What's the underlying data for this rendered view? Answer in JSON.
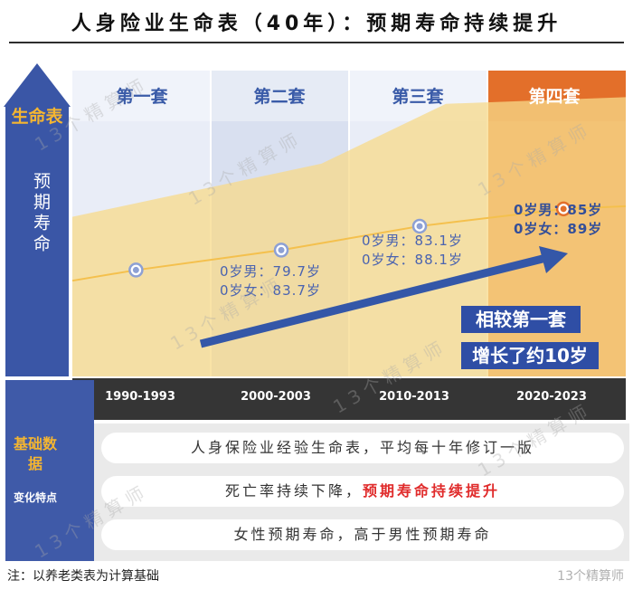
{
  "title": "人身险业生命表（40年）：预期寿命持续提升",
  "axis": {
    "heading": "生命表",
    "vertical_label": "预期寿命"
  },
  "chart_data": {
    "type": "line",
    "categories": [
      "1990-1993",
      "2000-2003",
      "2010-2013",
      "2020-2023"
    ],
    "sets": [
      "第一套",
      "第二套",
      "第三套",
      "第四套"
    ],
    "series": [
      {
        "values": [
          null,
          79.7,
          83.1,
          85
        ]
      },
      {
        "values": [
          null,
          83.7,
          88.1,
          89
        ]
      }
    ],
    "annotations": [
      {
        "line1": "0岁男：79.7岁",
        "line2": "0岁女：83.7岁"
      },
      {
        "line1": "0岁男：83.1岁",
        "line2": "0岁女：88.1岁"
      },
      {
        "line1": "0岁男：85岁",
        "line2": "0岁女：89岁"
      }
    ],
    "highlight": {
      "line1": "相较第一套",
      "line2": "增长了约10岁"
    }
  },
  "bottom": {
    "label1": "基础数据",
    "label2": "变化特点",
    "row1": "人身保险业经验生命表，平均每十年修订一版",
    "row2_prefix": "死亡率持续下降，",
    "row2_red": "预期寿命持续提升",
    "row3": "女性预期寿命，高于男性预期寿命"
  },
  "footnote": "注：以养老类表为计算基础",
  "watermark": "13个精算师",
  "source_mark": "13个精算师",
  "colors": {
    "band_light": "#e9edf7",
    "band_mid": "#d9e0f0",
    "band_hot": "#e8803a",
    "area": "#f7d98a",
    "line": "#f4c04d",
    "arrow": "#3457a8",
    "accent": "#f4b531",
    "red": "#e02b2b"
  }
}
